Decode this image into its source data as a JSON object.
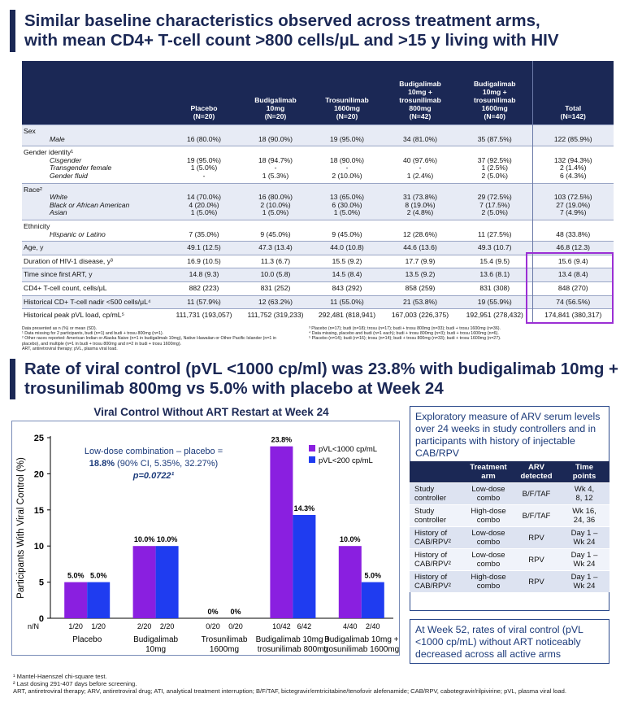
{
  "header_top": {
    "title_line1": "Similar baseline characteristics observed across treatment arms,",
    "title_line2": "with mean CD4+ T-cell count >800 cells/μL and >15 y living with HIV"
  },
  "baseline_table": {
    "columns": [
      "Placebo\n(N=20)",
      "Budigalimab\n10mg\n(N=20)",
      "Trosunilimab\n1600mg\n(N=20)",
      "Budigalimab\n10mg +\ntrosunilimab\n800mg\n(N=42)",
      "Budigalimab\n10mg +\ntrosunilimab\n1600mg\n(N=40)",
      "Total\n(N=142)"
    ],
    "rows": [
      {
        "label": "Sex",
        "sublabels": [
          "Male"
        ],
        "cells": [
          "16 (80.0%)",
          "18 (90.0%)",
          "19 (95.0%)",
          "34 (81.0%)",
          "35 (87.5%)",
          "122 (85.9%)"
        ],
        "shade": true
      },
      {
        "label": "Gender identity¹",
        "sublabels": [
          "Cisgender",
          "Transgender female",
          "Gender fluid"
        ],
        "cells": [
          "19 (95.0%)\n1 (5.0%)\n-",
          "18 (94.7%)\n-\n1 (5.3%)",
          "18 (90.0%)\n-\n2 (10.0%)",
          "40 (97.6%)\n-\n1 (2.4%)",
          "37 (92.5%)\n1 (2.5%)\n2 (5.0%)",
          "132 (94.3%)\n2 (1.4%)\n6 (4.3%)"
        ],
        "shade": false
      },
      {
        "label": "Race²",
        "sublabels": [
          "White",
          "Black or African American",
          "Asian"
        ],
        "cells": [
          "14 (70.0%)\n4 (20.0%)\n1 (5.0%)",
          "16 (80.0%)\n2 (10.0%)\n1 (5.0%)",
          "13 (65.0%)\n6 (30.0%)\n1 (5.0%)",
          "31 (73.8%)\n8 (19.0%)\n2 (4.8%)",
          "29 (72.5%)\n7 (17.5%)\n2 (5.0%)",
          "103 (72.5%)\n27 (19.0%)\n7 (4.9%)"
        ],
        "shade": true
      },
      {
        "label": "Ethnicity",
        "sublabels": [
          "Hispanic or Latino"
        ],
        "cells": [
          "7 (35.0%)",
          "9 (45.0%)",
          "9 (45.0%)",
          "12 (28.6%)",
          "11 (27.5%)",
          "48 (33.8%)"
        ],
        "shade": false
      },
      {
        "label": "Age, y",
        "sublabels": [],
        "cells": [
          "49.1 (12.5)",
          "47.3 (13.4)",
          "44.0 (10.8)",
          "44.6 (13.6)",
          "49.3 (10.7)",
          "46.8 (12.3)"
        ],
        "shade": true
      },
      {
        "label": "Duration of HIV-1 disease, y³",
        "sublabels": [],
        "cells": [
          "16.9 (10.5)",
          "11.3 (6.7)",
          "15.5 (9.2)",
          "17.7 (9.9)",
          "15.4 (9.5)",
          "15.6 (9.4)"
        ],
        "shade": false
      },
      {
        "label": "Time since first ART, y",
        "sublabels": [],
        "cells": [
          "14.8 (9.3)",
          "10.0 (5.8)",
          "14.5 (8.4)",
          "13.5 (9.2)",
          "13.6 (8.1)",
          "13.4 (8.4)"
        ],
        "shade": true
      },
      {
        "label": "CD4+ T-cell count, cells/μL",
        "sublabels": [],
        "cells": [
          "882 (223)",
          "831 (252)",
          "843 (292)",
          "858 (259)",
          "831 (308)",
          "848 (270)"
        ],
        "shade": false
      },
      {
        "label": "Historical CD+ T-cell nadir <500 cells/μL⁴",
        "sublabels": [],
        "cells": [
          "11 (57.9%)",
          "12 (63.2%)",
          "11 (55.0%)",
          "21 (53.8%)",
          "19 (55.9%)",
          "74 (56.5%)"
        ],
        "shade": true
      },
      {
        "label": "Historical peak pVL load, cp/mL⁵",
        "sublabels": [],
        "cells": [
          "111,731 (193,057)",
          "111,752 (319,233)",
          "292,481 (818,941)",
          "167,003 (226,375)",
          "192,951 (278,432)",
          "174,841 (380,317)"
        ],
        "shade": false
      }
    ]
  },
  "table_footnotes": {
    "left": [
      "Data presented as n (%) or mean (SD).",
      "¹ Data missing for 2 participants, budi (n=1) and budi + trosu 800mg (n=1).",
      "² Other races reported: American Indian or Alaska Naive (n=1 in budigalimab 10mg), Native Hawaiian or Other Pacific Islander (n=1 in",
      "placebo), and multiple (n=1 in budi + trosu 800mg and n=2 in budi + trosu 1600mg).",
      "ART, antiretroviral therapy; pVL, plasma viral load."
    ],
    "right": [
      "³ Placebo (n=17); budi (n=18); trosu (n=17); budi + trosu 800mg (n=33); budi + trosu 1600mg (n=36).",
      "⁴ Data missing, placebo and budi (n=1 each); budi + trosu 800mg (n=3); budi + trosu 1600mg (n=6).",
      "⁵ Placebo (n=14); budi (n=16); trosu (n=14); budi + trosu 800mg (n=33); budi + trosu 1600mg (n=27)."
    ]
  },
  "header_bottom": {
    "title_line1": "Rate of viral control (pVL <1000 cp/ml) was 23.8% with budigalimab 10mg +",
    "title_line2": "trosunilimab 800mg vs 5.0% with placebo at Week 24"
  },
  "chart_data": {
    "type": "bar",
    "title": "Viral Control Without ART Restart at Week 24",
    "ylabel": "Participants With Viral Control (%)",
    "ylim": [
      0,
      25
    ],
    "yticks": [
      0,
      5,
      10,
      15,
      20,
      25
    ],
    "categories": [
      "Placebo",
      "Budigalimab\n10mg",
      "Trosunilimab\n1600mg",
      "Budigalimab 10mg +\ntrosunilimab 800mg",
      "Budigalimab 10mg +\ntrosunilimab 1600mg"
    ],
    "series": [
      {
        "name": "pVL<1000 cp/mL",
        "color": "#8a1fe0",
        "values": [
          5.0,
          10.0,
          0,
          23.8,
          10.0
        ],
        "labels": [
          "5.0%",
          "10.0%",
          "0%",
          "23.8%",
          "10.0%"
        ],
        "nN": [
          "1/20",
          "2/20",
          "0/20",
          "10/42",
          "4/40"
        ]
      },
      {
        "name": "pVL<200 cp/mL",
        "color": "#1f3cf0",
        "values": [
          5.0,
          10.0,
          0,
          14.3,
          5.0
        ],
        "labels": [
          "5.0%",
          "10.0%",
          "0%",
          "14.3%",
          "5.0%"
        ],
        "nN": [
          "1/20",
          "2/20",
          "0/20",
          "6/42",
          "2/40"
        ]
      }
    ],
    "nN_label": "n/N",
    "annotation": {
      "line1": "Low-dose combination – placebo =",
      "line2_bold": "18.8%",
      "line2_rest": " (90% CI, 5.35%, 32.27%)",
      "line3": "p=0.0722¹"
    },
    "legend_position": "top-right",
    "grid": false
  },
  "exploratory": {
    "text": "Exploratory measure of ARV serum levels over 24 weeks in study controllers and in participants with history of injectable CAB/RPV",
    "headers": [
      "",
      "Treatment\narm",
      "ARV\ndetected",
      "Time\npoints"
    ],
    "rows": [
      [
        "Study\ncontroller",
        "Low-dose\ncombo",
        "B/F/TAF",
        "Wk 4,\n8, 12"
      ],
      [
        "Study\ncontroller",
        "High-dose\ncombo",
        "B/F/TAF",
        "Wk 16,\n24, 36"
      ],
      [
        "History of\nCAB/RPV²",
        "Low-dose\ncombo",
        "RPV",
        "Day 1 –\nWk 24"
      ],
      [
        "History of\nCAB/RPV²",
        "Low-dose\ncombo",
        "RPV",
        "Day 1 –\nWk 24"
      ],
      [
        "History of\nCAB/RPV²",
        "High-dose\ncombo",
        "RPV",
        "Day 1 –\nWk 24"
      ]
    ]
  },
  "week52_note": "At Week 52, rates of viral control (pVL <1000 cp/mL) without ART noticeably decreased across all active arms",
  "bottom_footnotes": [
    "¹ Mantel-Haenszel chi-square test.",
    "² Last dosing 291-407 days before screening.",
    "ART, antiretroviral therapy; ARV, antiretroviral drug; ATI, analytical treatment interruption; B/F/TAF, bictegravir/emtricitabine/tenofovir alefenamide; CAB/RPV, cabotegravir/rilpivirine; pVL, plasma viral load."
  ]
}
